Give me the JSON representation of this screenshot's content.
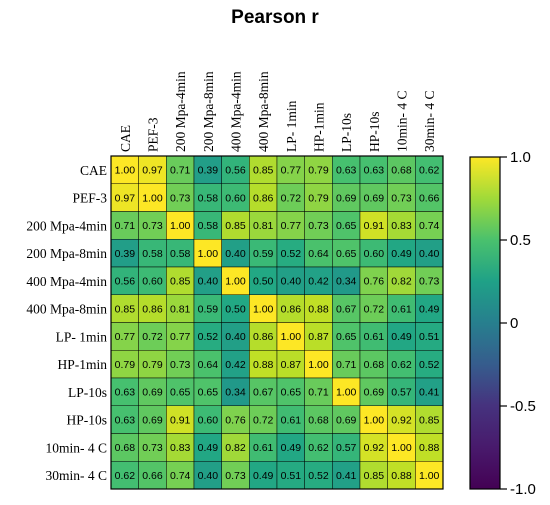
{
  "chart_data": {
    "type": "heatmap",
    "title": "Pearson r",
    "labels": [
      "CAE",
      "PEF-3",
      "200 Mpa-4min",
      "200 Mpa-8min",
      "400 Mpa-4min",
      "400 Mpa-8min",
      "LP- 1min",
      "HP-1min",
      "LP-10s",
      "HP-10s",
      "10min- 4 C",
      "30min- 4 C"
    ],
    "matrix": [
      [
        1.0,
        0.97,
        0.71,
        0.39,
        0.56,
        0.85,
        0.77,
        0.79,
        0.63,
        0.63,
        0.68,
        0.62
      ],
      [
        0.97,
        1.0,
        0.73,
        0.58,
        0.6,
        0.86,
        0.72,
        0.79,
        0.69,
        0.69,
        0.73,
        0.66
      ],
      [
        0.71,
        0.73,
        1.0,
        0.58,
        0.85,
        0.81,
        0.77,
        0.73,
        0.65,
        0.91,
        0.83,
        0.74
      ],
      [
        0.39,
        0.58,
        0.58,
        1.0,
        0.4,
        0.59,
        0.52,
        0.64,
        0.65,
        0.6,
        0.49,
        0.4
      ],
      [
        0.56,
        0.6,
        0.85,
        0.4,
        1.0,
        0.5,
        0.4,
        0.42,
        0.34,
        0.76,
        0.82,
        0.73
      ],
      [
        0.85,
        0.86,
        0.81,
        0.59,
        0.5,
        1.0,
        0.86,
        0.88,
        0.67,
        0.72,
        0.61,
        0.49
      ],
      [
        0.77,
        0.72,
        0.77,
        0.52,
        0.4,
        0.86,
        1.0,
        0.87,
        0.65,
        0.61,
        0.49,
        0.51
      ],
      [
        0.79,
        0.79,
        0.73,
        0.64,
        0.42,
        0.88,
        0.87,
        1.0,
        0.71,
        0.68,
        0.62,
        0.52
      ],
      [
        0.63,
        0.69,
        0.65,
        0.65,
        0.34,
        0.67,
        0.65,
        0.71,
        1.0,
        0.69,
        0.57,
        0.41
      ],
      [
        0.63,
        0.69,
        0.91,
        0.6,
        0.76,
        0.72,
        0.61,
        0.68,
        0.69,
        1.0,
        0.92,
        0.85
      ],
      [
        0.68,
        0.73,
        0.83,
        0.49,
        0.82,
        0.61,
        0.49,
        0.62,
        0.57,
        0.92,
        1.0,
        0.88
      ],
      [
        0.62,
        0.66,
        0.74,
        0.4,
        0.73,
        0.49,
        0.51,
        0.52,
        0.41,
        0.85,
        0.88,
        1.0
      ]
    ],
    "colorbar": {
      "colormap": "viridis",
      "range": [
        -1.0,
        1.0
      ],
      "ticks": [
        1.0,
        0.5,
        0,
        -0.5,
        -1.0
      ],
      "tick_labels": [
        "1.0",
        "0.5",
        "0",
        "-0.5",
        "-1.0"
      ]
    }
  }
}
